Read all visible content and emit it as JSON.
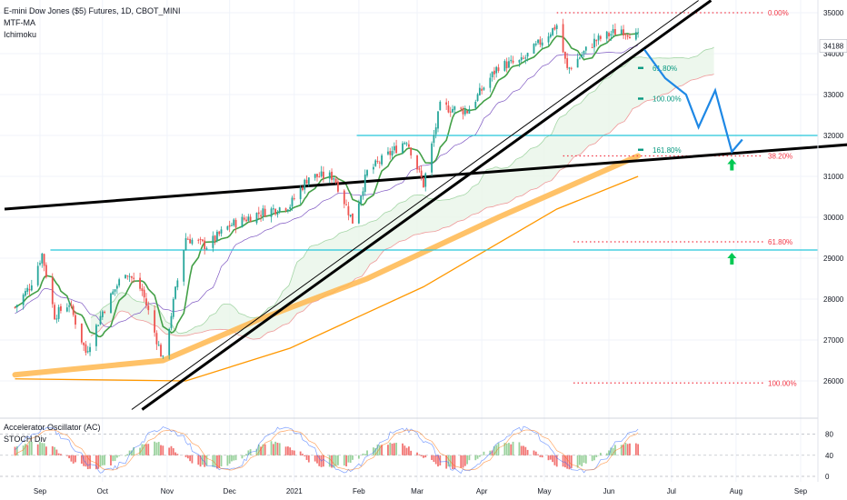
{
  "legend": {
    "symbol": "E-mini Dow Jones ($5) Futures, 1D, CBOT_MINI",
    "indicator1": "MTF-MA",
    "indicator2": "Ichimoku"
  },
  "oscillator": {
    "name": "Accelerator Oscillator (AC)",
    "name2": "STOCH Div",
    "ticks": [
      "80",
      "40",
      "0"
    ]
  },
  "price_label": "34188",
  "chart_data": {
    "type": "candlestick",
    "title": "E-mini Dow Jones ($5) Futures, 1D, CBOT_MINI",
    "y_ticks": [
      "35000",
      "34000",
      "33000",
      "32000",
      "31000",
      "30000",
      "29000",
      "28000",
      "27000",
      "26000"
    ],
    "y_range": [
      25000,
      35300
    ],
    "x_ticks": [
      "Sep",
      "Oct",
      "Nov",
      "Dec",
      "2021",
      "Feb",
      "Mar",
      "Apr",
      "May",
      "Jun",
      "Jul",
      "Aug",
      "Sep"
    ],
    "last_price": 34188,
    "fib_right": [
      {
        "label": "0.00%",
        "value": 35000,
        "color": "#f23645"
      },
      {
        "label": "38.20%",
        "value": 31500,
        "color": "#f23645"
      },
      {
        "label": "61.80%",
        "value": 29400,
        "color": "#f23645"
      },
      {
        "label": "100.00%",
        "value": 25950,
        "color": "#f23645"
      }
    ],
    "fib_ext": [
      {
        "label": "61.80%",
        "value": 33650,
        "color": "#089981"
      },
      {
        "label": "100.00%",
        "value": 32900,
        "color": "#089981"
      },
      {
        "label": "161.80%",
        "value": 31650,
        "color": "#089981"
      }
    ],
    "horizontal_levels": [
      32000,
      29200
    ],
    "price_path": [
      {
        "date": "2020-08-20",
        "close": 27800
      },
      {
        "date": "2020-08-27",
        "close": 28300
      },
      {
        "date": "2020-09-02",
        "close": 29100
      },
      {
        "date": "2020-09-08",
        "close": 27600
      },
      {
        "date": "2020-09-15",
        "close": 27900
      },
      {
        "date": "2020-09-23",
        "close": 26700
      },
      {
        "date": "2020-10-01",
        "close": 27700
      },
      {
        "date": "2020-10-12",
        "close": 28700
      },
      {
        "date": "2020-10-20",
        "close": 28200
      },
      {
        "date": "2020-10-30",
        "close": 26500
      },
      {
        "date": "2020-11-05",
        "close": 28200
      },
      {
        "date": "2020-11-10",
        "close": 29500
      },
      {
        "date": "2020-11-20",
        "close": 29300
      },
      {
        "date": "2020-12-01",
        "close": 29800
      },
      {
        "date": "2020-12-15",
        "close": 30100
      },
      {
        "date": "2020-12-30",
        "close": 30300
      },
      {
        "date": "2021-01-08",
        "close": 31000
      },
      {
        "date": "2021-01-20",
        "close": 31000
      },
      {
        "date": "2021-01-29",
        "close": 29900
      },
      {
        "date": "2021-02-05",
        "close": 31100
      },
      {
        "date": "2021-02-24",
        "close": 31900
      },
      {
        "date": "2021-03-04",
        "close": 30800
      },
      {
        "date": "2021-03-12",
        "close": 32700
      },
      {
        "date": "2021-03-25",
        "close": 32600
      },
      {
        "date": "2021-04-09",
        "close": 33700
      },
      {
        "date": "2021-04-20",
        "close": 33800
      },
      {
        "date": "2021-05-07",
        "close": 34700
      },
      {
        "date": "2021-05-12",
        "close": 33600
      },
      {
        "date": "2021-05-25",
        "close": 34300
      },
      {
        "date": "2021-06-07",
        "close": 34600
      },
      {
        "date": "2021-06-15",
        "close": 34400
      }
    ],
    "projection": [
      {
        "date": "2021-06-18",
        "value": 34100
      },
      {
        "date": "2021-06-28",
        "value": 33400
      },
      {
        "date": "2021-07-08",
        "value": 33000
      },
      {
        "date": "2021-07-14",
        "value": 32200
      },
      {
        "date": "2021-07-22",
        "value": 33100
      },
      {
        "date": "2021-07-30",
        "value": 31600
      },
      {
        "date": "2021-08-04",
        "value": 31900
      }
    ],
    "trendlines": [
      {
        "from": {
          "date": "2020-08-15",
          "value": 30200
        },
        "to": {
          "date": "2021-09-30",
          "value": 31800
        },
        "style": "thick"
      },
      {
        "from": {
          "date": "2020-10-20",
          "value": 25300
        },
        "to": {
          "date": "2021-07-20",
          "value": 35300
        },
        "style": "thick"
      },
      {
        "from": {
          "date": "2020-10-15",
          "value": 25300
        },
        "to": {
          "date": "2021-07-14",
          "value": 35300
        },
        "style": "thin"
      }
    ],
    "moving_average_200": [
      {
        "date": "2020-08-20",
        "value": 26150
      },
      {
        "date": "2020-10-30",
        "value": 26500
      },
      {
        "date": "2020-12-15",
        "value": 27500
      },
      {
        "date": "2021-02-05",
        "value": 28500
      },
      {
        "date": "2021-04-09",
        "value": 30000
      },
      {
        "date": "2021-06-15",
        "value": 31500
      }
    ],
    "moving_average_slow": [
      {
        "date": "2020-08-20",
        "value": 26050
      },
      {
        "date": "2020-11-10",
        "value": 26000
      },
      {
        "date": "2020-12-30",
        "value": 26800
      },
      {
        "date": "2021-03-04",
        "value": 28300
      },
      {
        "date": "2021-05-07",
        "value": 30200
      },
      {
        "date": "2021-06-15",
        "value": 31000
      }
    ],
    "up_arrows": [
      {
        "date": "2021-07-30",
        "value": 31300
      },
      {
        "date": "2021-07-30",
        "value": 29000
      }
    ],
    "oscillator_y_ticks": [
      80,
      40,
      0
    ]
  }
}
